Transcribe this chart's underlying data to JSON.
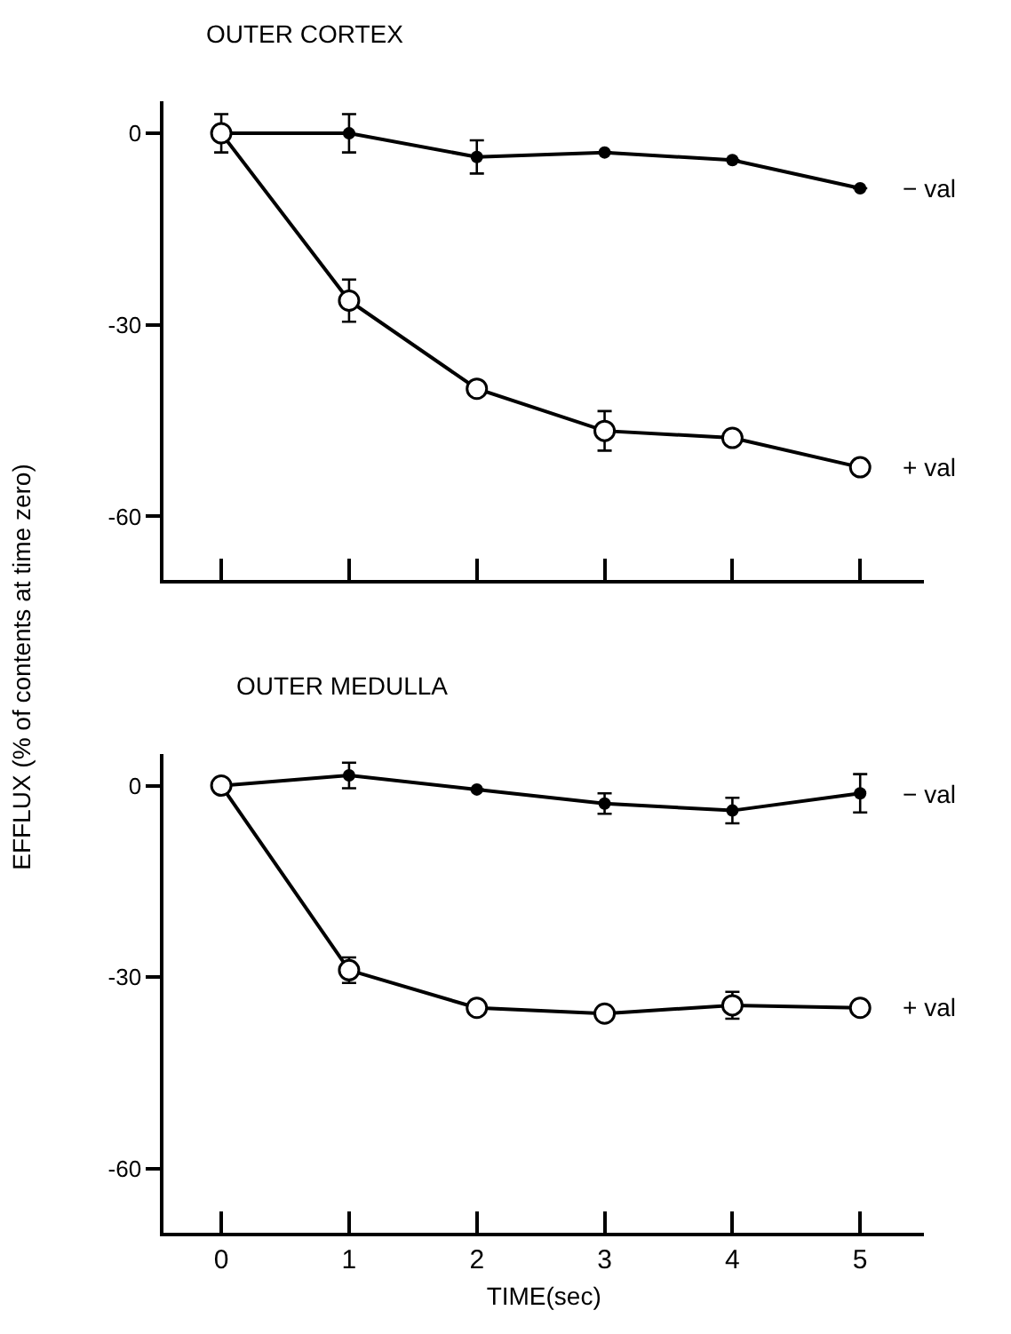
{
  "chart_data": [
    {
      "type": "line",
      "title": "OUTER CORTEX",
      "ylabel": "EFFLUX (% of contents at time zero)",
      "x": [
        0,
        1,
        2,
        3,
        4,
        5
      ],
      "xlim": [
        -0.45,
        5.5
      ],
      "xticks": [
        0,
        1,
        2,
        3,
        4,
        5
      ],
      "ylim": [
        -70,
        5
      ],
      "yticks": [
        0,
        -30,
        -60
      ],
      "tick_labels": "y",
      "legend": "right",
      "line_style": "solid",
      "series": [
        {
          "name": "− val",
          "color": "#000000",
          "marker": "circle",
          "values": [
            0,
            0,
            -3.7,
            -3.0,
            -4.2,
            -8.6
          ],
          "errors": [
            3,
            3,
            2.6,
            null,
            null,
            null
          ]
        },
        {
          "name": "+ val",
          "color": "#000000",
          "marker": "circle-open",
          "values": [
            0,
            -26.2,
            -40.0,
            -46.6,
            -47.7,
            -52.3
          ],
          "errors": [
            null,
            3.3,
            null,
            3.1,
            null,
            null
          ]
        }
      ]
    },
    {
      "type": "line",
      "title": "OUTER MEDULLA",
      "xlabel": "TIME(sec)",
      "x": [
        0,
        1,
        2,
        3,
        4,
        5
      ],
      "xlim": [
        -0.45,
        5.5
      ],
      "xticks": [
        0,
        1,
        2,
        3,
        4,
        5
      ],
      "ylim": [
        -70,
        5
      ],
      "yticks": [
        0,
        -30,
        -60
      ],
      "legend": "right",
      "line_style": "solid",
      "series": [
        {
          "name": "− val",
          "color": "#000000",
          "marker": "circle",
          "values": [
            0,
            1.6,
            -0.6,
            -2.8,
            -3.9,
            -1.2
          ],
          "errors": [
            null,
            2,
            null,
            1.6,
            2,
            3
          ]
        },
        {
          "name": "+ val",
          "color": "#000000",
          "marker": "circle-open",
          "values": [
            0,
            -28.9,
            -34.8,
            -35.7,
            -34.4,
            -34.8
          ],
          "errors": [
            null,
            2,
            null,
            null,
            2.1,
            null
          ]
        }
      ]
    }
  ]
}
